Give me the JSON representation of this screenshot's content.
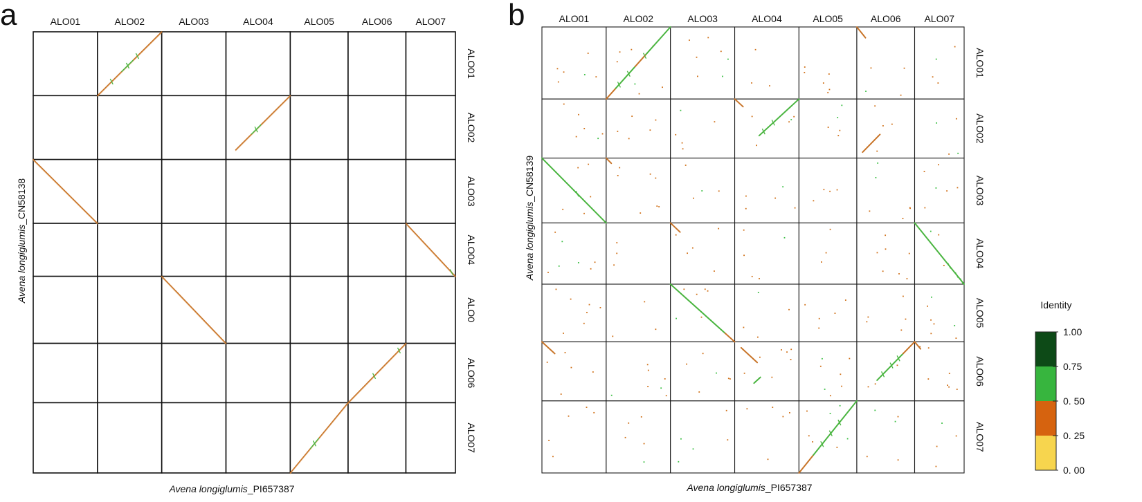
{
  "chart_data": [
    {
      "type": "scatter",
      "panel_label": "a",
      "columns": [
        "ALO01",
        "ALO02",
        "ALO03",
        "ALO04",
        "ALO05",
        "ALO06",
        "ALO07"
      ],
      "rows": [
        "ALO01",
        "ALO02",
        "ALO03",
        "ALO04",
        "ALO0",
        "ALO06",
        "ALO07"
      ],
      "xlabel_italic": "Avena longiglumis",
      "xlabel_rest": "_PI657387",
      "ylabel_italic": "Avena longiglumis",
      "ylabel_rest": "_CN58138",
      "col_widths": [
        1.0,
        1.0,
        1.0,
        1.0,
        0.9,
        0.9,
        0.77
      ],
      "row_heights": [
        1.0,
        1.0,
        1.0,
        0.83,
        1.05,
        0.93,
        1.1
      ],
      "alignments": [
        {
          "row": 0,
          "col": 1,
          "direction": "forward",
          "segments": [
            [
              0,
              0.38,
              "orange"
            ],
            [
              0.38,
              0.56,
              "green"
            ],
            [
              0.56,
              1.0,
              "orange"
            ]
          ],
          "ticks": [
            0.22,
            0.47,
            0.62
          ]
        },
        {
          "row": 1,
          "col": 3,
          "direction": "forward",
          "start": 0.15,
          "segments": [
            [
              0.15,
              0.4,
              "orange"
            ],
            [
              0.4,
              0.55,
              "green"
            ],
            [
              0.55,
              1.0,
              "orange"
            ]
          ],
          "ticks": [
            0.47
          ]
        },
        {
          "row": 2,
          "col": 0,
          "direction": "reverse",
          "segments": [
            [
              0,
              1.0,
              "orange"
            ]
          ],
          "ticks": []
        },
        {
          "row": 3,
          "col": 6,
          "direction": "reverse",
          "segments": [
            [
              0,
              1.0,
              "orange"
            ]
          ],
          "ticks": [
            0.92
          ]
        },
        {
          "row": 4,
          "col": 2,
          "direction": "reverse",
          "segments": [
            [
              0,
              1.0,
              "orange"
            ]
          ],
          "ticks": []
        },
        {
          "row": 5,
          "col": 5,
          "direction": "forward",
          "segments": [
            [
              0,
              1.0,
              "orange"
            ]
          ],
          "ticks": [
            0.45,
            0.88
          ]
        },
        {
          "row": 6,
          "col": 4,
          "direction": "forward",
          "segments": [
            [
              0,
              0.35,
              "orange"
            ],
            [
              0.35,
              0.5,
              "green"
            ],
            [
              0.5,
              1.0,
              "orange"
            ]
          ],
          "ticks": [
            0.42
          ]
        }
      ]
    },
    {
      "type": "scatter",
      "panel_label": "b",
      "columns": [
        "ALO01",
        "ALO02",
        "ALO03",
        "ALO04",
        "ALO05",
        "ALO06",
        "ALO07"
      ],
      "rows": [
        "ALO01",
        "ALO02",
        "ALO03",
        "ALO04",
        "ALO05",
        "ALO06",
        "ALO07"
      ],
      "xlabel_italic": "Avena longiglumis",
      "xlabel_rest": "_PI657387",
      "ylabel_italic": "Avena longiglumis",
      "ylabel_rest": "_CN58139",
      "col_widths": [
        1.0,
        1.0,
        1.0,
        1.0,
        0.9,
        0.9,
        0.77
      ],
      "row_heights": [
        1.0,
        0.82,
        0.9,
        0.85,
        0.8,
        0.82,
        1.0
      ],
      "alignments": [
        {
          "row": 0,
          "col": 1,
          "direction": "forward",
          "segments": [
            [
              0,
              0.15,
              "orange"
            ],
            [
              0.15,
              0.45,
              "green"
            ],
            [
              0.45,
              0.62,
              "orange"
            ],
            [
              0.62,
              1.0,
              "green"
            ]
          ],
          "ticks": [
            0.2,
            0.35,
            0.6
          ]
        },
        {
          "row": 0,
          "col": 5,
          "direction": "reverse",
          "start": 0,
          "end": 0.15,
          "segments": [
            [
              0,
              0.15,
              "orange"
            ]
          ],
          "ticks": []
        },
        {
          "row": 1,
          "col": 3,
          "direction": "forward",
          "start": 0.38,
          "segments": [
            [
              0.38,
              1.0,
              "green"
            ]
          ],
          "ticks": [
            0.45,
            0.6
          ]
        },
        {
          "row": 1,
          "col": 3,
          "direction": "reverse",
          "start": 0,
          "end": 0.13,
          "segments": [
            [
              0,
              0.13,
              "orange"
            ]
          ],
          "ticks": []
        },
        {
          "row": 1,
          "col": 5,
          "direction": "forward",
          "start": 0.1,
          "end": 0.4,
          "segments": [
            [
              0.1,
              0.4,
              "orange"
            ]
          ],
          "ticks": []
        },
        {
          "row": 2,
          "col": 0,
          "direction": "reverse",
          "segments": [
            [
              0,
              1.0,
              "green"
            ]
          ],
          "ticks": [
            0.55
          ]
        },
        {
          "row": 2,
          "col": 1,
          "direction": "reverse",
          "start": 0,
          "end": 0.08,
          "segments": [
            [
              0,
              0.08,
              "orange"
            ]
          ],
          "ticks": []
        },
        {
          "row": 3,
          "col": 2,
          "direction": "reverse",
          "start": 0,
          "end": 0.15,
          "segments": [
            [
              0,
              0.15,
              "orange"
            ]
          ],
          "ticks": []
        },
        {
          "row": 3,
          "col": 6,
          "direction": "reverse",
          "segments": [
            [
              0,
              1.0,
              "green"
            ]
          ],
          "ticks": [
            0.7,
            0.85,
            0.95
          ]
        },
        {
          "row": 4,
          "col": 2,
          "direction": "reverse",
          "segments": [
            [
              0,
              0.85,
              "green"
            ],
            [
              0.85,
              1.0,
              "orange"
            ]
          ],
          "ticks": []
        },
        {
          "row": 5,
          "col": 0,
          "direction": "reverse",
          "start": 0,
          "end": 0.2,
          "segments": [
            [
              0,
              0.2,
              "orange"
            ]
          ],
          "ticks": []
        },
        {
          "row": 5,
          "col": 3,
          "direction": "reverse",
          "start": 0.1,
          "end": 0.35,
          "segments": [
            [
              0.1,
              0.35,
              "orange"
            ]
          ],
          "ticks": []
        },
        {
          "row": 5,
          "col": 3,
          "direction": "forward",
          "start": 0.3,
          "end": 0.4,
          "segments": [
            [
              0.3,
              0.4,
              "green"
            ]
          ],
          "ticks": []
        },
        {
          "row": 5,
          "col": 5,
          "direction": "forward",
          "start": 0.35,
          "segments": [
            [
              0.35,
              0.8,
              "green"
            ],
            [
              0.8,
              1.0,
              "orange"
            ]
          ],
          "ticks": [
            0.45,
            0.6,
            0.72
          ]
        },
        {
          "row": 5,
          "col": 6,
          "direction": "reverse",
          "start": 0,
          "end": 0.12,
          "segments": [
            [
              0,
              0.12,
              "orange"
            ]
          ],
          "ticks": []
        },
        {
          "row": 6,
          "col": 4,
          "direction": "forward",
          "segments": [
            [
              0,
              0.25,
              "orange"
            ],
            [
              0.25,
              1.0,
              "green"
            ]
          ],
          "ticks": [
            0.4,
            0.55,
            0.7
          ]
        }
      ]
    }
  ],
  "legend": {
    "title": "Identity",
    "labels": [
      "1.00",
      "0.75",
      "0. 50",
      "0. 25",
      "0. 00"
    ],
    "colors": [
      "#0d4a17",
      "#37b53e",
      "#d6630f",
      "#f7d54e"
    ]
  },
  "colors": {
    "orange": "#c87428",
    "light_orange": "#dfa060",
    "green": "#4ab540",
    "grid": "#1a1a1a",
    "panel_a_grid": "#111111",
    "dot_orange": "#d07018",
    "dot_green": "#3cbf44"
  }
}
